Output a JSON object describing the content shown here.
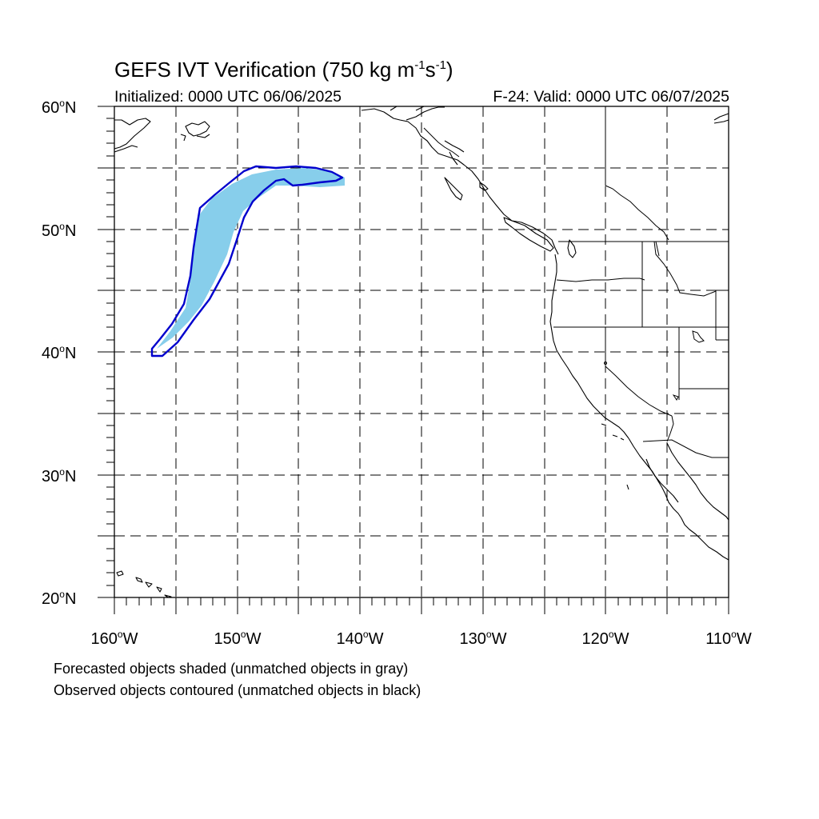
{
  "title": {
    "main": "GEFS IVT Verification (750 kg m",
    "exp1": "-1",
    "mid": "s",
    "exp2": "-1",
    "end": ")"
  },
  "init_label": "Initialized: 0000 UTC 06/06/2025",
  "valid_label": "F-24: Valid: 0000 UTC 06/07/2025",
  "lat_labels": [
    {
      "value": "60",
      "hemi": "N"
    },
    {
      "value": "50",
      "hemi": "N"
    },
    {
      "value": "40",
      "hemi": "N"
    },
    {
      "value": "30",
      "hemi": "N"
    },
    {
      "value": "20",
      "hemi": "N"
    }
  ],
  "lon_labels": [
    {
      "value": "160",
      "hemi": "W"
    },
    {
      "value": "150",
      "hemi": "W"
    },
    {
      "value": "140",
      "hemi": "W"
    },
    {
      "value": "130",
      "hemi": "W"
    },
    {
      "value": "120",
      "hemi": "W"
    },
    {
      "value": "110",
      "hemi": "W"
    }
  ],
  "footnotes": {
    "forecast": "Forecasted objects shaded (unmatched objects in gray)",
    "observed": "Observed objects contoured (unmatched objects in black)"
  },
  "colors": {
    "forecast_fill": "#87ceeb",
    "observed_contour": "#0000cd",
    "coastline": "#000000",
    "grid": "#000000"
  }
}
